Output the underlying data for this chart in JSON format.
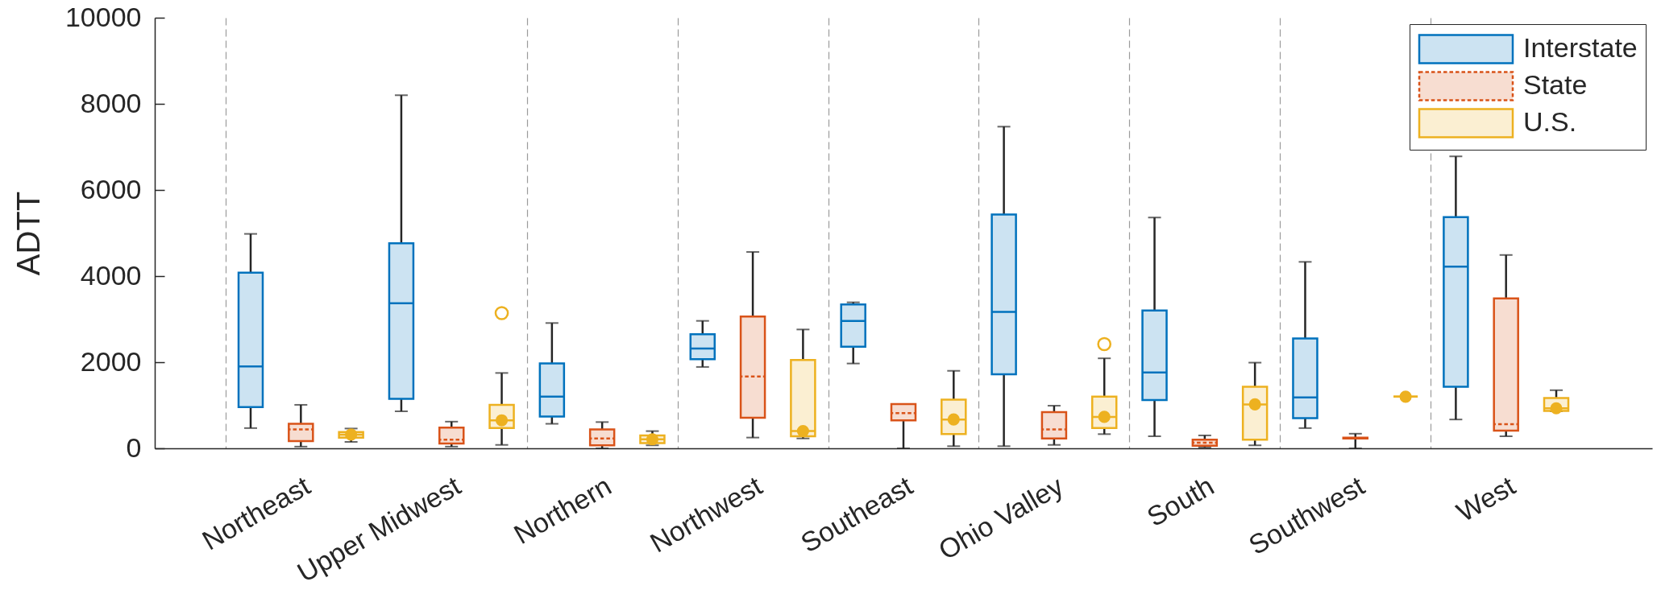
{
  "chart_data": {
    "type": "box",
    "ylabel": "ADTT",
    "categories": [
      "Northeast",
      "Upper Midwest",
      "Northern",
      "Northwest",
      "Southeast",
      "Ohio Valley",
      "South",
      "Southwest",
      "West"
    ],
    "series": [
      {
        "name": "Interstate",
        "color": "#0072bd",
        "line_style": "solid",
        "boxes": [
          {
            "low": 470,
            "q1": 960,
            "median": 1900,
            "q3": 4080,
            "high": 4980
          },
          {
            "low": 860,
            "q1": 1150,
            "median": 3370,
            "q3": 4760,
            "high": 8200
          },
          {
            "low": 570,
            "q1": 740,
            "median": 1200,
            "q3": 1970,
            "high": 2910
          },
          {
            "low": 1890,
            "q1": 2070,
            "median": 2320,
            "q3": 2650,
            "high": 2960
          },
          {
            "low": 1970,
            "q1": 2360,
            "median": 2960,
            "q3": 3340,
            "high": 3390
          },
          {
            "low": 50,
            "q1": 1720,
            "median": 3170,
            "q3": 5430,
            "high": 7470
          },
          {
            "low": 280,
            "q1": 1120,
            "median": 1760,
            "q3": 3200,
            "high": 5360
          },
          {
            "low": 470,
            "q1": 700,
            "median": 1180,
            "q3": 2550,
            "high": 4330
          },
          {
            "low": 670,
            "q1": 1430,
            "median": 4220,
            "q3": 5370,
            "high": 6780
          }
        ]
      },
      {
        "name": "State",
        "color": "#d95319",
        "line_style": "dashed",
        "boxes": [
          {
            "low": 40,
            "q1": 170,
            "median": 440,
            "q3": 570,
            "high": 1010
          },
          {
            "low": 40,
            "q1": 110,
            "median": 200,
            "q3": 480,
            "high": 620
          },
          {
            "low": 0,
            "q1": 70,
            "median": 230,
            "q3": 440,
            "high": 610
          },
          {
            "low": 250,
            "q1": 710,
            "median": 1670,
            "q3": 3060,
            "high": 4560
          },
          {
            "low": 0,
            "q1": 650,
            "median": 820,
            "q3": 1030,
            "high": 1030
          },
          {
            "low": 80,
            "q1": 230,
            "median": 440,
            "q3": 840,
            "high": 990
          },
          {
            "low": 20,
            "q1": 60,
            "median": 130,
            "q3": 200,
            "high": 300
          },
          {
            "low": 0,
            "q1": 230,
            "median": 240,
            "q3": 250,
            "high": 340
          },
          {
            "low": 280,
            "q1": 410,
            "median": 560,
            "q3": 3480,
            "high": 4490
          }
        ]
      },
      {
        "name": "U.S.",
        "color": "#edb120",
        "line_style": "solid",
        "boxes": [
          {
            "low": 150,
            "q1": 250,
            "median": 320,
            "q3": 380,
            "high": 460
          },
          {
            "low": 80,
            "q1": 470,
            "median": 650,
            "q3": 1010,
            "high": 1750,
            "outliers": [
              3140
            ]
          },
          {
            "low": 70,
            "q1": 120,
            "median": 210,
            "q3": 300,
            "high": 400
          },
          {
            "low": 230,
            "q1": 280,
            "median": 400,
            "q3": 2050,
            "high": 2760
          },
          {
            "low": 50,
            "q1": 330,
            "median": 670,
            "q3": 1130,
            "high": 1800
          },
          {
            "low": 330,
            "q1": 470,
            "median": 730,
            "q3": 1200,
            "high": 2090,
            "outliers": [
              2420
            ]
          },
          {
            "low": 70,
            "q1": 200,
            "median": 1020,
            "q3": 1430,
            "high": 1990
          },
          {
            "low": 1200,
            "q1": 1200,
            "median": 1200,
            "q3": 1200,
            "high": 1200
          },
          {
            "low": 860,
            "q1": 870,
            "median": 930,
            "q3": 1170,
            "high": 1350
          }
        ]
      },
      {
        "type": "scatter",
        "color": "#edb120",
        "marker": "circle",
        "x": [
          "Northeast",
          "Upper Midwest",
          "Northern",
          "Northwest",
          "Southeast",
          "Ohio Valley",
          "South",
          "Southwest",
          "West"
        ],
        "values": [
          320,
          650,
          210,
          400,
          670,
          730,
          1020,
          1200,
          930
        ]
      }
    ],
    "ylim": [
      0,
      10000
    ],
    "yticks": [
      0,
      2000,
      4000,
      6000,
      8000,
      10000
    ],
    "grid": "x",
    "legend": "top right"
  }
}
